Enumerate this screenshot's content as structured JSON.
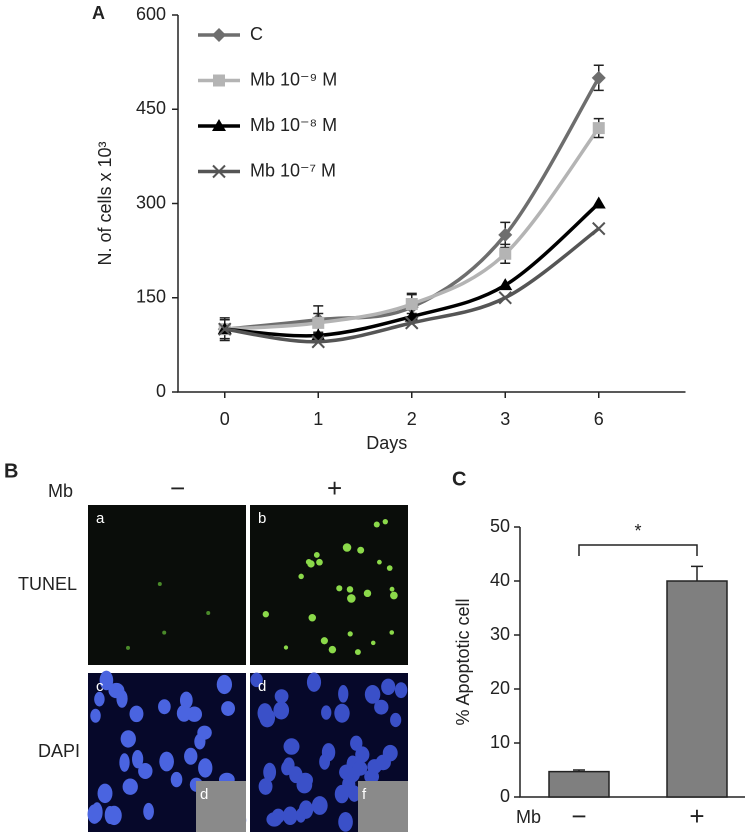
{
  "chart_data": [
    {
      "type": "line",
      "panel_label": "A",
      "x_label": "Days",
      "y_label": "N. of cells x 10³",
      "categories": [
        "0",
        "1",
        "2",
        "3",
        "6"
      ],
      "ylim": [
        0,
        600
      ],
      "yticks": [
        0,
        150,
        300,
        450,
        600
      ],
      "series": [
        {
          "name": "C",
          "color": "#6e6e6e",
          "marker": "diamond",
          "values": [
            100,
            115,
            135,
            250,
            500
          ],
          "errors": [
            15,
            22,
            22,
            20,
            20
          ]
        },
        {
          "name": "Mb 10⁻⁹ M",
          "color": "#b4b4b4",
          "marker": "square",
          "values": [
            100,
            110,
            140,
            220,
            420
          ],
          "errors": [
            18,
            15,
            15,
            15,
            15
          ]
        },
        {
          "name": "Mb 10⁻⁸ M",
          "color": "#000000",
          "marker": "triangle",
          "values": [
            100,
            90,
            120,
            170,
            300
          ]
        },
        {
          "name": "Mb 10⁻⁷ M",
          "color": "#555555",
          "marker": "x",
          "values": [
            100,
            80,
            110,
            150,
            260
          ]
        }
      ]
    },
    {
      "type": "bar",
      "panel_label": "C",
      "x_label": "Mb",
      "y_label": "% Apoptotic cell",
      "categories": [
        "−",
        "+"
      ],
      "values": [
        4.7,
        40
      ],
      "errors": [
        0.3,
        2.7
      ],
      "color": "#7f7f7f",
      "ylim": [
        0,
        50
      ],
      "yticks": [
        0,
        10,
        20,
        30,
        40,
        50
      ],
      "annotations": [
        {
          "text": "*"
        }
      ]
    }
  ],
  "panel_b": {
    "panel_label": "B",
    "treatment": "Mb",
    "columns": [
      "−",
      "+"
    ],
    "rows": [
      "TUNEL",
      "DAPI"
    ],
    "images": [
      [
        "a",
        "b"
      ],
      [
        "c",
        "d"
      ]
    ],
    "insets": [
      "d",
      "f"
    ]
  }
}
